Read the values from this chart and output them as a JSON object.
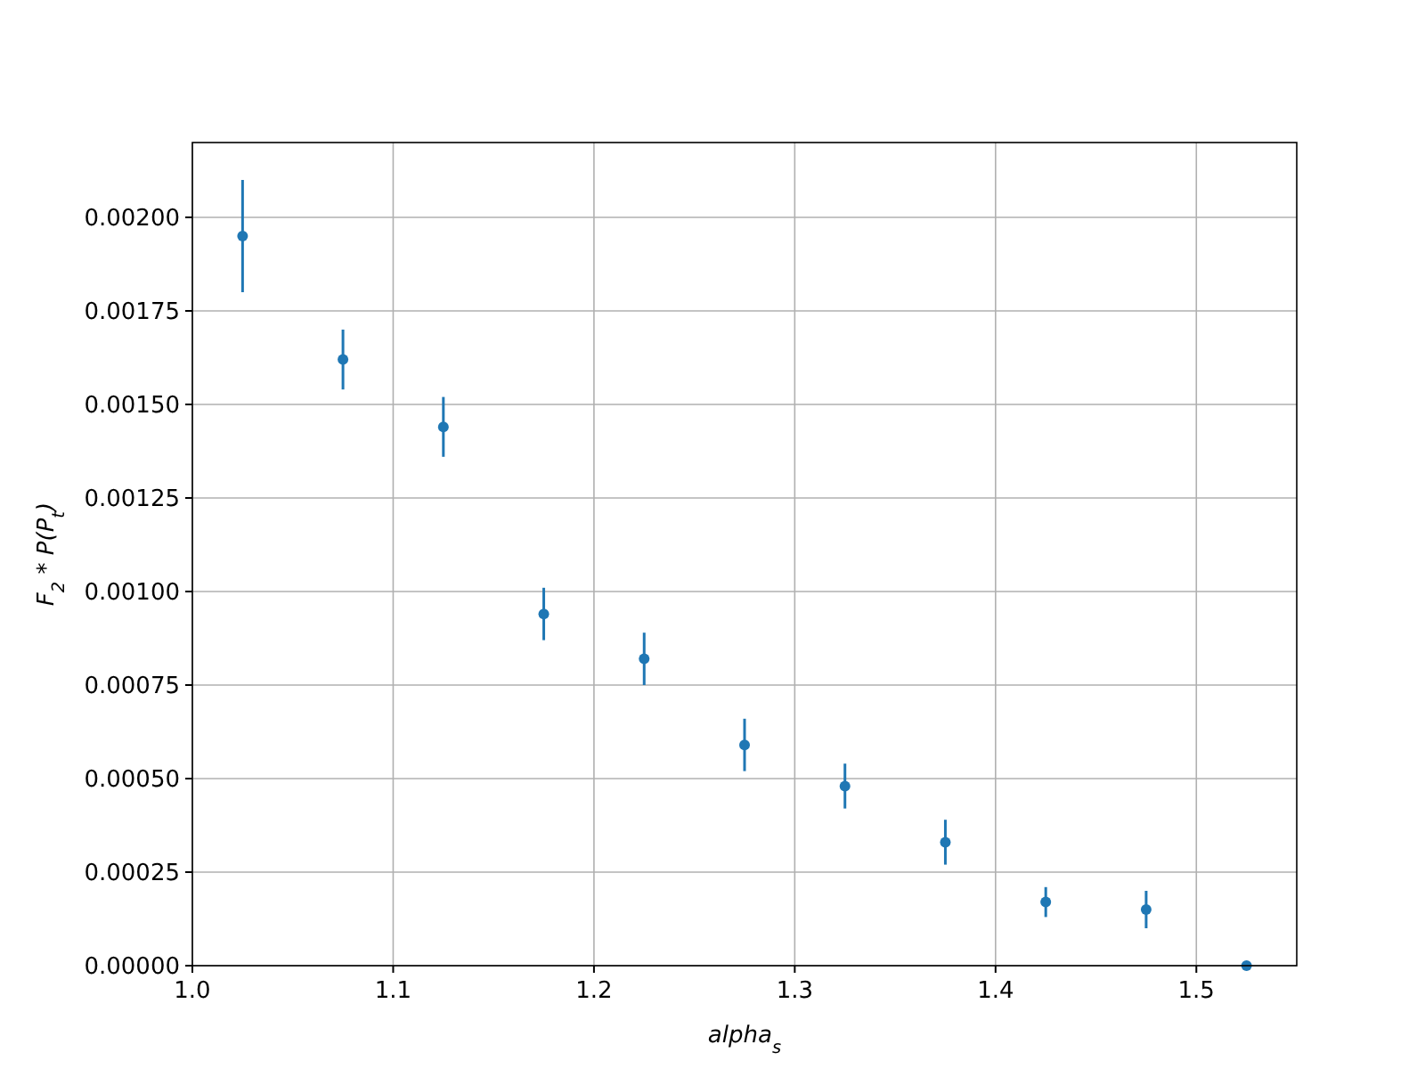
{
  "chart_data": {
    "type": "scatter",
    "xlabel": "alpha$_{s}$",
    "ylabel": "F$_{2}$ * P(P$_{t}$)",
    "x": [
      1.025,
      1.075,
      1.125,
      1.175,
      1.225,
      1.275,
      1.325,
      1.375,
      1.425,
      1.475,
      1.525
    ],
    "series": [
      {
        "color": "#1f77b4",
        "values": [
          0.00195,
          0.00162,
          0.00144,
          0.00094,
          0.00082,
          0.00059,
          0.00048,
          0.00033,
          0.00017,
          0.00015,
          0
        ],
        "errors": [
          0.00015,
          8e-05,
          8e-05,
          7e-05,
          7e-05,
          7e-05,
          6e-05,
          6e-05,
          4e-05,
          5e-05,
          null
        ]
      }
    ],
    "xlim": [
      1.0,
      1.55
    ],
    "ylim": [
      0,
      0.0022
    ],
    "xticks": [
      {
        "value": 1,
        "label": "1.0"
      },
      {
        "value": 1.1,
        "label": "1.1"
      },
      {
        "value": 1.2,
        "label": "1.2"
      },
      {
        "value": 1.3,
        "label": "1.3"
      },
      {
        "value": 1.4,
        "label": "1.4"
      },
      {
        "value": 1.5,
        "label": "1.5"
      }
    ],
    "yticks": [
      {
        "value": 0,
        "label": "0.00000"
      },
      {
        "value": 0.00025,
        "label": "0.00025"
      },
      {
        "value": 0.0005,
        "label": "0.00050"
      },
      {
        "value": 0.00075,
        "label": "0.00075"
      },
      {
        "value": 0.001,
        "label": "0.00100"
      },
      {
        "value": 0.00125,
        "label": "0.00125"
      },
      {
        "value": 0.0015,
        "label": "0.00150"
      },
      {
        "value": 0.00175,
        "label": "0.00175"
      },
      {
        "value": 0.002,
        "label": "0.00200"
      }
    ],
    "grid": true,
    "marker": "circle"
  }
}
